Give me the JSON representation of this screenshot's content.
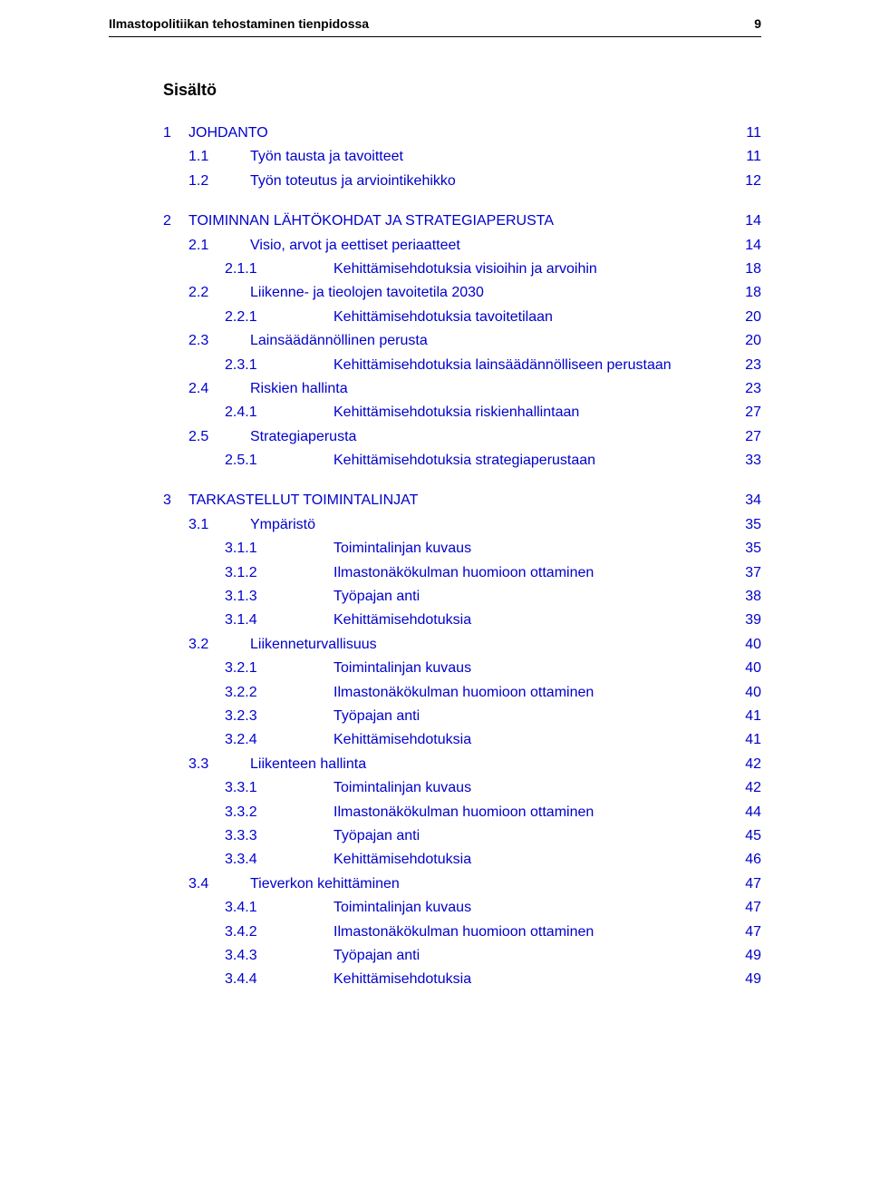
{
  "header": {
    "title": "Ilmastopolitiikan tehostaminen tienpidossa",
    "page_number": "9"
  },
  "toc_title": "Sisältö",
  "entries": [
    {
      "level": 1,
      "num": "1",
      "label": "JOHDANTO",
      "page": "11",
      "link": true
    },
    {
      "level": 2,
      "num": "1.1",
      "label": "Työn tausta ja tavoitteet",
      "page": "11",
      "link": true
    },
    {
      "level": 2,
      "num": "1.2",
      "label": "Työn toteutus ja arviointikehikko",
      "page": "12",
      "link": true
    },
    {
      "level": 1,
      "num": "2",
      "label": "TOIMINNAN LÄHTÖKOHDAT JA STRATEGIAPERUSTA",
      "page": "14",
      "link": true
    },
    {
      "level": 2,
      "num": "2.1",
      "label": "Visio, arvot ja eettiset periaatteet",
      "page": "14",
      "link": true
    },
    {
      "level": 3,
      "num": "2.1.1",
      "label": "Kehittämisehdotuksia visioihin ja arvoihin",
      "page": "18",
      "link": true
    },
    {
      "level": 2,
      "num": "2.2",
      "label": "Liikenne- ja tieolojen tavoitetila 2030",
      "page": "18",
      "link": true
    },
    {
      "level": 3,
      "num": "2.2.1",
      "label": "Kehittämisehdotuksia tavoitetilaan",
      "page": "20",
      "link": true
    },
    {
      "level": 2,
      "num": "2.3",
      "label": "Lainsäädännöllinen perusta",
      "page": "20",
      "link": true
    },
    {
      "level": 3,
      "num": "2.3.1",
      "label": "Kehittämisehdotuksia lainsäädännölliseen perustaan",
      "page": "23",
      "link": true
    },
    {
      "level": 2,
      "num": "2.4",
      "label": "Riskien hallinta",
      "page": "23",
      "link": true
    },
    {
      "level": 3,
      "num": "2.4.1",
      "label": "Kehittämisehdotuksia riskienhallintaan",
      "page": "27",
      "link": true
    },
    {
      "level": 2,
      "num": "2.5",
      "label": "Strategiaperusta",
      "page": "27",
      "link": true
    },
    {
      "level": 3,
      "num": "2.5.1",
      "label": "Kehittämisehdotuksia strategiaperustaan",
      "page": "33",
      "link": true
    },
    {
      "level": 1,
      "num": "3",
      "label": "TARKASTELLUT TOIMINTALINJAT",
      "page": "34",
      "link": true
    },
    {
      "level": 2,
      "num": "3.1",
      "label": "Ympäristö",
      "page": "35",
      "link": true
    },
    {
      "level": 3,
      "num": "3.1.1",
      "label": "Toimintalinjan kuvaus",
      "page": "35",
      "link": true
    },
    {
      "level": 3,
      "num": "3.1.2",
      "label": "Ilmastonäkökulman huomioon ottaminen",
      "page": "37",
      "link": true
    },
    {
      "level": 3,
      "num": "3.1.3",
      "label": "Työpajan anti",
      "page": "38",
      "link": true
    },
    {
      "level": 3,
      "num": "3.1.4",
      "label": "Kehittämisehdotuksia",
      "page": "39",
      "link": true
    },
    {
      "level": 2,
      "num": "3.2",
      "label": "Liikenneturvallisuus",
      "page": "40",
      "link": true
    },
    {
      "level": 3,
      "num": "3.2.1",
      "label": "Toimintalinjan kuvaus",
      "page": "40",
      "link": true
    },
    {
      "level": 3,
      "num": "3.2.2",
      "label": "Ilmastonäkökulman huomioon ottaminen",
      "page": "40",
      "link": true
    },
    {
      "level": 3,
      "num": "3.2.3",
      "label": "Työpajan anti",
      "page": "41",
      "link": true
    },
    {
      "level": 3,
      "num": "3.2.4",
      "label": "Kehittämisehdotuksia",
      "page": "41",
      "link": true
    },
    {
      "level": 2,
      "num": "3.3",
      "label": "Liikenteen hallinta",
      "page": "42",
      "link": true
    },
    {
      "level": 3,
      "num": "3.3.1",
      "label": "Toimintalinjan kuvaus",
      "page": "42",
      "link": true
    },
    {
      "level": 3,
      "num": "3.3.2",
      "label": "Ilmastonäkökulman huomioon ottaminen",
      "page": "44",
      "link": true
    },
    {
      "level": 3,
      "num": "3.3.3",
      "label": "Työpajan anti",
      "page": "45",
      "link": true
    },
    {
      "level": 3,
      "num": "3.3.4",
      "label": "Kehittämisehdotuksia",
      "page": "46",
      "link": true
    },
    {
      "level": 2,
      "num": "3.4",
      "label": "Tieverkon kehittäminen",
      "page": "47",
      "link": true
    },
    {
      "level": 3,
      "num": "3.4.1",
      "label": "Toimintalinjan kuvaus",
      "page": "47",
      "link": true
    },
    {
      "level": 3,
      "num": "3.4.2",
      "label": "Ilmastonäkökulman huomioon ottaminen",
      "page": "47",
      "link": true
    },
    {
      "level": 3,
      "num": "3.4.3",
      "label": "Työpajan anti",
      "page": "49",
      "link": true
    },
    {
      "level": 3,
      "num": "3.4.4",
      "label": "Kehittämisehdotuksia",
      "page": "49",
      "link": true
    }
  ]
}
